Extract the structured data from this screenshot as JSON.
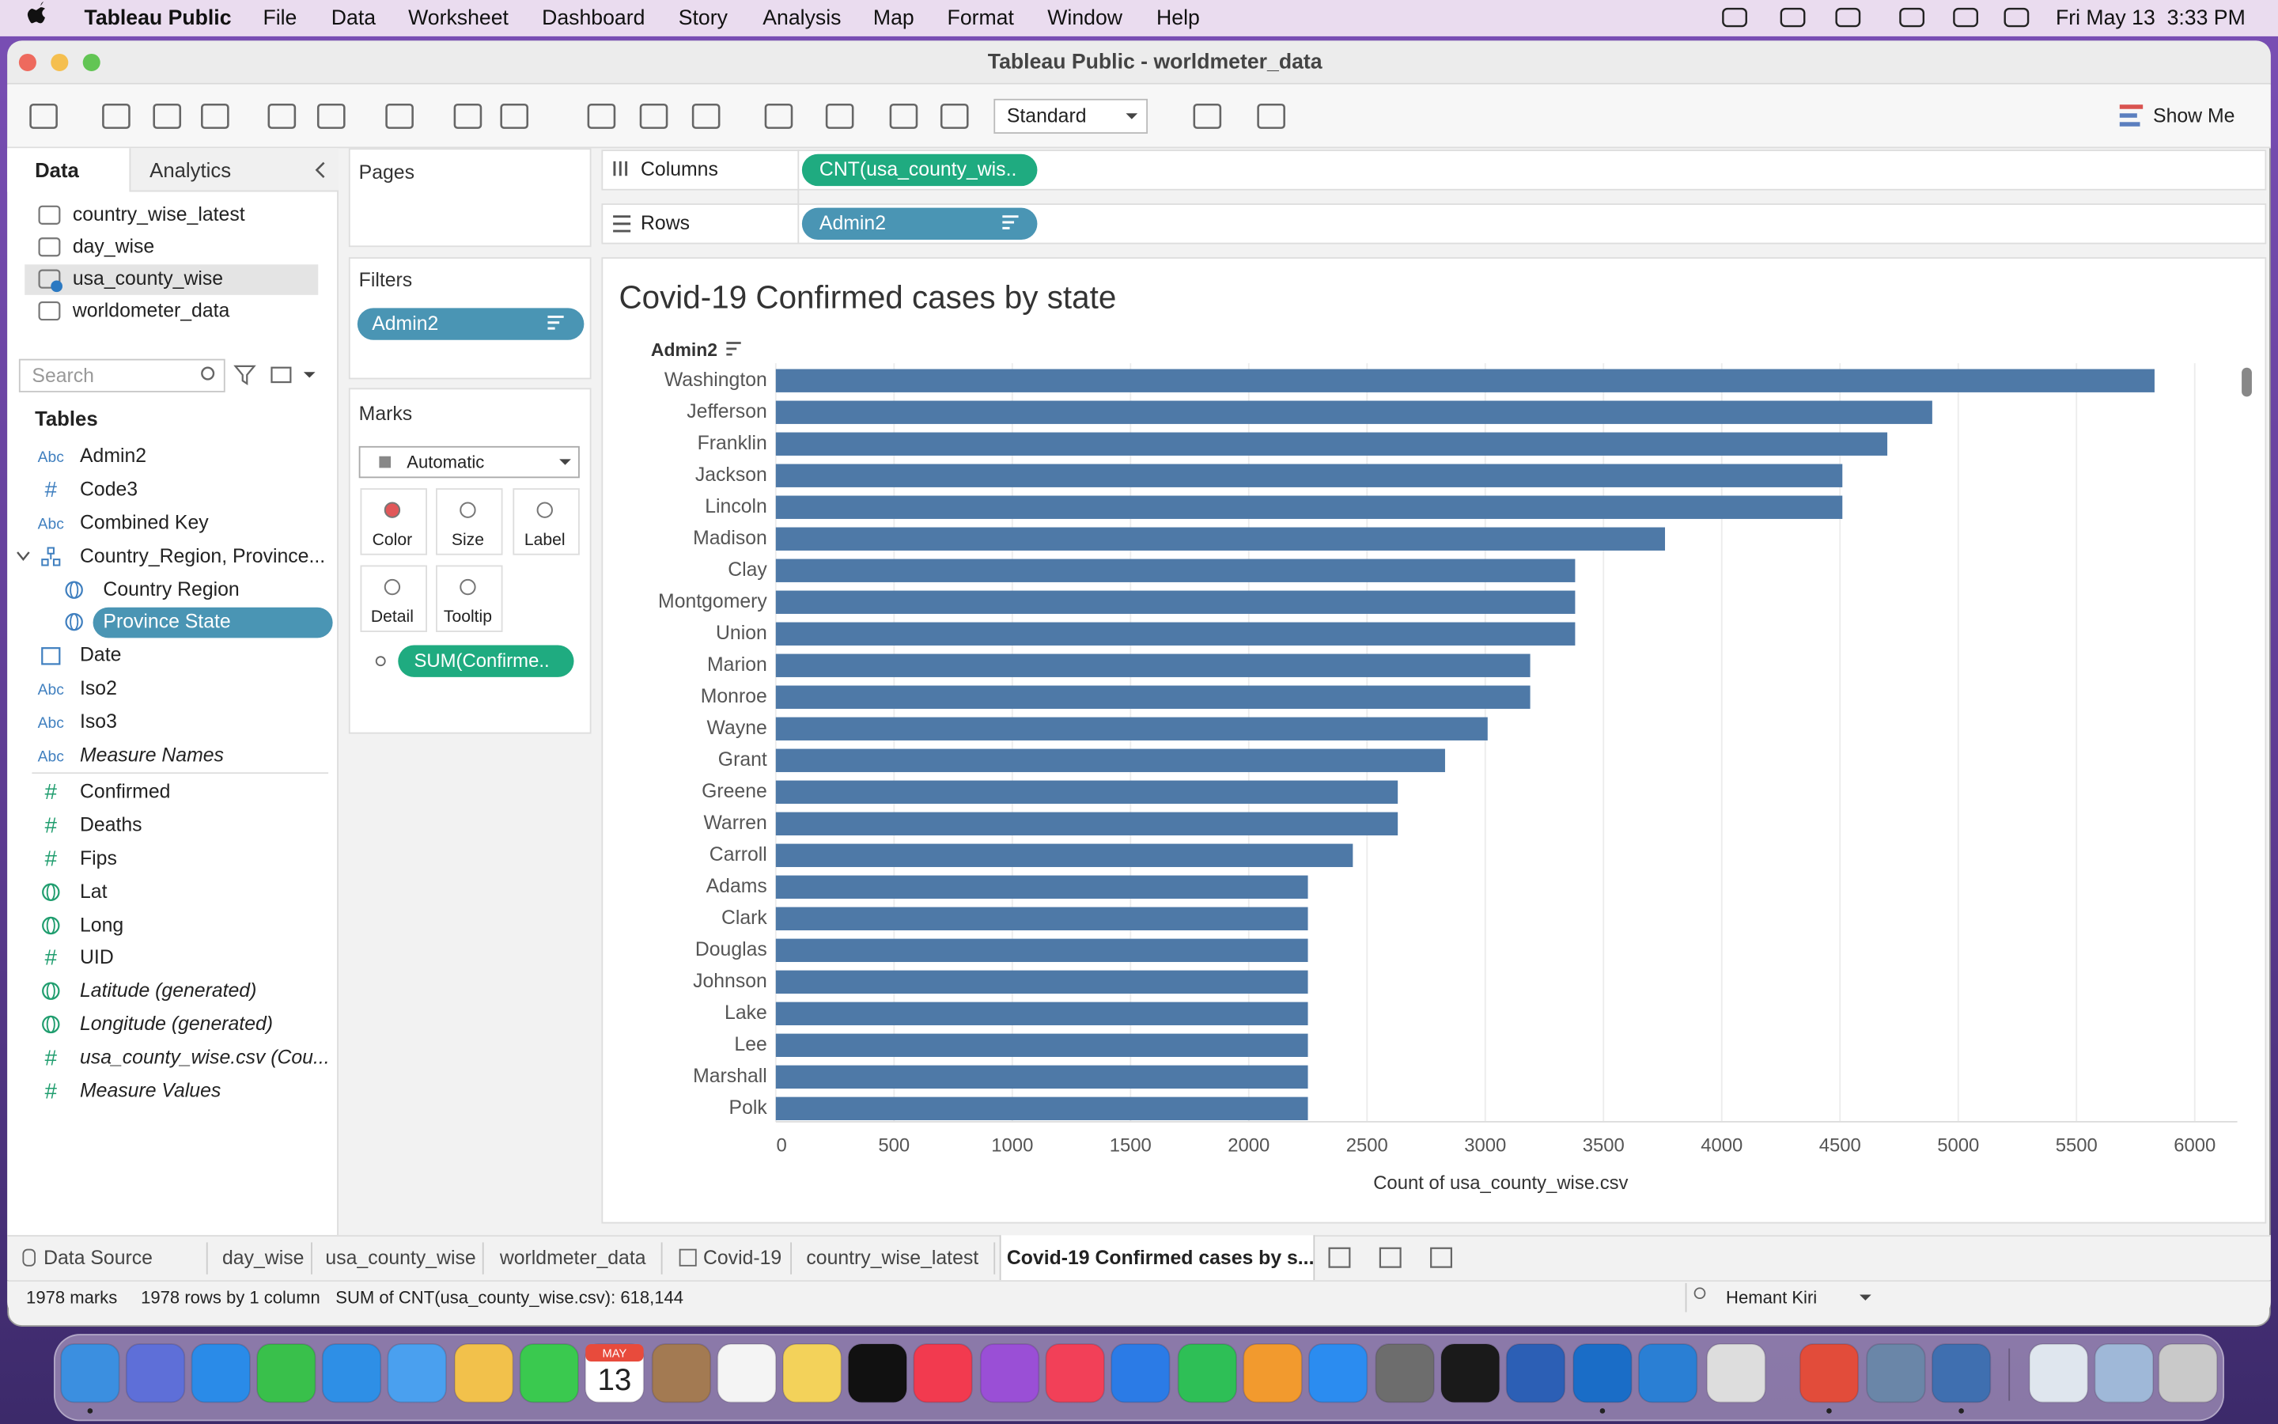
{
  "menu_bar": {
    "app": "Tableau Public",
    "items": [
      "File",
      "Data",
      "Worksheet",
      "Dashboard",
      "Story",
      "Analysis",
      "Map",
      "Format",
      "Window",
      "Help"
    ],
    "clock": "Fri May 13  3:33 PM"
  },
  "window": {
    "title": "Tableau Public - worldmeter_data"
  },
  "toolbar": {
    "fit": "Standard",
    "show_me": "Show Me"
  },
  "data_pane": {
    "tabs": [
      "Data",
      "Analytics"
    ],
    "sources": [
      "country_wise_latest",
      "day_wise",
      "usa_county_wise",
      "worldometer_data"
    ],
    "search": "Search",
    "tables_heading": "Tables",
    "fields": [
      {
        "icon": "Abc",
        "name": "Admin2"
      },
      {
        "icon": "#",
        "name": "Code3"
      },
      {
        "icon": "Abc",
        "name": "Combined Key"
      },
      {
        "name": "Country_Region, Province..."
      },
      {
        "name": "Country Region"
      },
      {
        "name": "Province State"
      },
      {
        "name": "Date"
      },
      {
        "icon": "Abc",
        "name": "Iso2"
      },
      {
        "icon": "Abc",
        "name": "Iso3"
      },
      {
        "icon": "Abc",
        "name": "Measure Names"
      },
      {
        "icon": "#",
        "name": "Confirmed"
      },
      {
        "icon": "#",
        "name": "Deaths"
      },
      {
        "icon": "#",
        "name": "Fips"
      },
      {
        "name": "Lat"
      },
      {
        "name": "Long"
      },
      {
        "icon": "#",
        "name": "UID"
      },
      {
        "name": "Latitude (generated)"
      },
      {
        "name": "Longitude (generated)"
      },
      {
        "icon": "#",
        "name": "usa_county_wise.csv (Cou..."
      },
      {
        "icon": "#",
        "name": "Measure Values"
      }
    ]
  },
  "pages": {
    "title": "Pages"
  },
  "filters": {
    "title": "Filters",
    "pill": "Admin2"
  },
  "marks": {
    "title": "Marks",
    "mark_type": "Automatic",
    "buttons": [
      "Color",
      "Size",
      "Label",
      "Detail",
      "Tooltip"
    ],
    "pill": "SUM(Confirme.."
  },
  "shelves": {
    "columns": {
      "label": "Columns",
      "pill": "CNT(usa_county_wis.."
    },
    "rows": {
      "label": "Rows",
      "pill": "Admin2"
    }
  },
  "chart_data": {
    "type": "bar",
    "orientation": "horizontal",
    "title": "Covid-19 Confirmed cases by state",
    "row_header": "Admin2",
    "x_label": "Count of usa_county_wise.csv",
    "categories": [
      "Washington",
      "Jefferson",
      "Franklin",
      "Jackson",
      "Lincoln",
      "Madison",
      "Clay",
      "Montgomery",
      "Union",
      "Marion",
      "Monroe",
      "Wayne",
      "Grant",
      "Greene",
      "Warren",
      "Carroll",
      "Adams",
      "Clark",
      "Douglas",
      "Johnson",
      "Lake",
      "Lee",
      "Marshall",
      "Polk"
    ],
    "values": [
      5830,
      4890,
      4700,
      4510,
      4510,
      3760,
      3380,
      3380,
      3380,
      3190,
      3190,
      3010,
      2830,
      2630,
      2630,
      2440,
      2250,
      2250,
      2250,
      2250,
      2250,
      2250,
      2250,
      2250
    ],
    "color": "#4e79a7",
    "xlim": [
      0,
      6180
    ],
    "xticks": [
      0,
      500,
      1000,
      1500,
      2000,
      2500,
      3000,
      3500,
      4000,
      4500,
      5000,
      5500,
      6000
    ],
    "grid": true
  },
  "sheet_tabs": {
    "items": [
      "Data Source",
      "day_wise",
      "usa_county_wise",
      "worldmeter_data",
      "Covid-19",
      "country_wise_latest",
      "Covid-19 Confirmed cases by s..."
    ],
    "active": 6
  },
  "status_bar": {
    "marks": "1978 marks",
    "rows": "1978 rows by 1 column",
    "summary": "SUM of CNT(usa_county_wise.csv): 618,144",
    "user": "Hemant Kiri"
  },
  "dock": {
    "calendar_month": "MAY",
    "calendar_day": "13"
  }
}
